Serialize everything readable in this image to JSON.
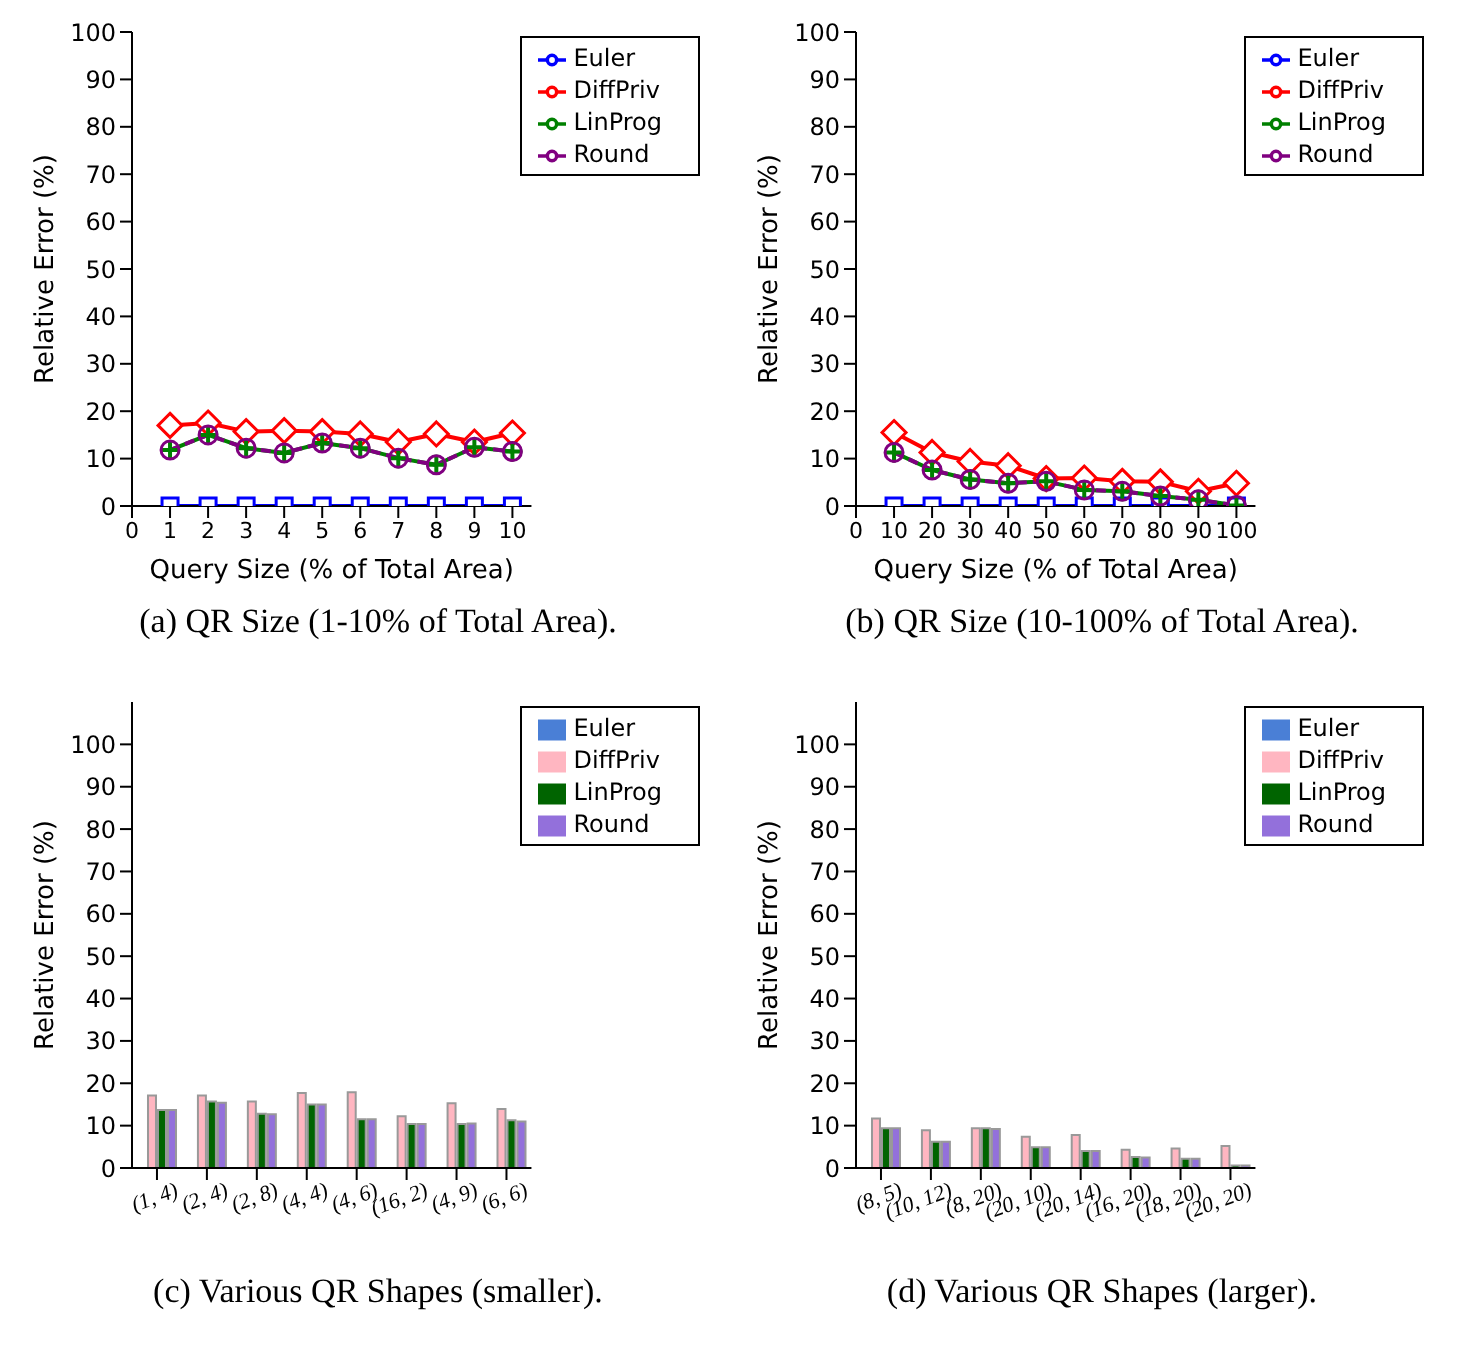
{
  "chart_data": [
    {
      "type": "line",
      "xlabel": "Query Size (% of Total Area)",
      "ylabel": "Relative Error (%)",
      "annotations": [
        "(a) QR Size (1-10% of Total Area)."
      ],
      "x": [
        1,
        2,
        3,
        4,
        5,
        6,
        7,
        8,
        9,
        10
      ],
      "xlim": [
        0,
        10.5
      ],
      "xticks": [
        0,
        1,
        2,
        3,
        4,
        5,
        6,
        7,
        8,
        9,
        10
      ],
      "ylim": [
        0,
        100
      ],
      "yticks": [
        0,
        10,
        20,
        30,
        40,
        50,
        60,
        70,
        80,
        90,
        100
      ],
      "legend": "top right",
      "series": [
        {
          "name": "Euler",
          "color": "#0000ff",
          "marker": "square",
          "line_style": "solid",
          "values": [
            0,
            0,
            0,
            0,
            0,
            0,
            0,
            0,
            0,
            0
          ]
        },
        {
          "name": "DiffPriv",
          "color": "#ff0000",
          "marker": "diamond",
          "line_style": "solid",
          "values": [
            17,
            17.5,
            15.7,
            15.9,
            15.7,
            15.2,
            13.5,
            15.2,
            13.5,
            15.4
          ]
        },
        {
          "name": "LinProg",
          "color": "#008000",
          "marker": "cross",
          "line_style": "solid",
          "values": [
            11.8,
            15,
            12.2,
            11.2,
            13.3,
            12.2,
            10.1,
            8.7,
            12.4,
            11.5
          ]
        },
        {
          "name": "Round",
          "color": "#800080",
          "marker": "circle",
          "line_style": "dashed",
          "values": [
            11.8,
            15,
            12.2,
            11.2,
            13.3,
            12.2,
            10.1,
            8.7,
            12.4,
            11.5
          ]
        }
      ]
    },
    {
      "type": "line",
      "xlabel": "Query Size (% of Total Area)",
      "ylabel": "Relative Error (%)",
      "annotations": [
        "(b) QR Size (10-100% of Total Area)."
      ],
      "x": [
        10,
        20,
        30,
        40,
        50,
        60,
        70,
        80,
        90,
        100
      ],
      "xlim": [
        0,
        105
      ],
      "xticks": [
        0,
        10,
        20,
        30,
        40,
        50,
        60,
        70,
        80,
        90,
        100
      ],
      "ylim": [
        0,
        100
      ],
      "yticks": [
        0,
        10,
        20,
        30,
        40,
        50,
        60,
        70,
        80,
        90,
        100
      ],
      "legend": "top right",
      "series": [
        {
          "name": "Euler",
          "color": "#0000ff",
          "marker": "square",
          "line_style": "solid",
          "values": [
            0,
            0,
            0,
            0,
            0,
            0,
            0,
            0,
            0,
            0
          ]
        },
        {
          "name": "DiffPriv",
          "color": "#ff0000",
          "marker": "diamond",
          "line_style": "solid",
          "values": [
            15.5,
            11.3,
            9.4,
            8.5,
            5.8,
            5.9,
            5.2,
            5.1,
            3.1,
            4.8
          ]
        },
        {
          "name": "LinProg",
          "color": "#008000",
          "marker": "cross",
          "line_style": "solid",
          "values": [
            11.3,
            7.6,
            5.6,
            4.8,
            5.2,
            3.4,
            3.1,
            2.1,
            1.3,
            0.1
          ]
        },
        {
          "name": "Round",
          "color": "#800080",
          "marker": "circle",
          "line_style": "dashed",
          "values": [
            11.3,
            7.6,
            5.6,
            4.8,
            5.2,
            3.4,
            3.1,
            2.1,
            1.3,
            0.1
          ]
        }
      ]
    },
    {
      "type": "bar",
      "ylabel": "Relative Error (%)",
      "annotations": [
        "(c) Various QR Shapes (smaller)."
      ],
      "categories": [
        "(1, 4)",
        "(2, 4)",
        "(2, 8)",
        "(4, 4)",
        "(4, 6)",
        "(16, 2)",
        "(4, 9)",
        "(6, 6)"
      ],
      "ylim": [
        0,
        110
      ],
      "yticks": [
        0,
        10,
        20,
        30,
        40,
        50,
        60,
        70,
        80,
        90,
        100
      ],
      "legend": "top right",
      "series": [
        {
          "name": "Euler",
          "color": "#4a7fd6",
          "values": [
            0,
            0,
            0,
            0,
            0,
            0,
            0,
            0
          ]
        },
        {
          "name": "DiffPriv",
          "color": "#ffb6c1",
          "values": [
            17.1,
            17.1,
            15.7,
            17.7,
            17.9,
            12.2,
            15.3,
            13.9
          ]
        },
        {
          "name": "LinProg",
          "color": "#006400",
          "values": [
            13.7,
            15.7,
            12.8,
            15,
            11.5,
            10.4,
            10.4,
            11.3
          ]
        },
        {
          "name": "Round",
          "color": "#9370db",
          "values": [
            13.7,
            15.4,
            12.7,
            15,
            11.5,
            10.4,
            10.5,
            11
          ]
        }
      ]
    },
    {
      "type": "bar",
      "ylabel": "Relative Error (%)",
      "annotations": [
        "(d) Various QR Shapes (larger)."
      ],
      "categories": [
        "(8, 5)",
        "(10, 12)",
        "(8, 20)",
        "(20, 10)",
        "(20, 14)",
        "(16, 20)",
        "(18, 20)",
        "(20, 20)"
      ],
      "ylim": [
        0,
        110
      ],
      "yticks": [
        0,
        10,
        20,
        30,
        40,
        50,
        60,
        70,
        80,
        90,
        100
      ],
      "legend": "top right",
      "series": [
        {
          "name": "Euler",
          "color": "#4a7fd6",
          "values": [
            0,
            0,
            0,
            0,
            0,
            0,
            0,
            0
          ]
        },
        {
          "name": "DiffPriv",
          "color": "#ffb6c1",
          "values": [
            11.7,
            8.9,
            9.4,
            7.4,
            7.8,
            4.3,
            4.6,
            5.2
          ]
        },
        {
          "name": "LinProg",
          "color": "#006400",
          "values": [
            9.4,
            6.2,
            9.4,
            4.9,
            4,
            2.6,
            2.2,
            0.6
          ]
        },
        {
          "name": "Round",
          "color": "#9370db",
          "values": [
            9.4,
            6.2,
            9.2,
            4.9,
            4,
            2.5,
            2.2,
            0.6
          ]
        }
      ]
    }
  ]
}
